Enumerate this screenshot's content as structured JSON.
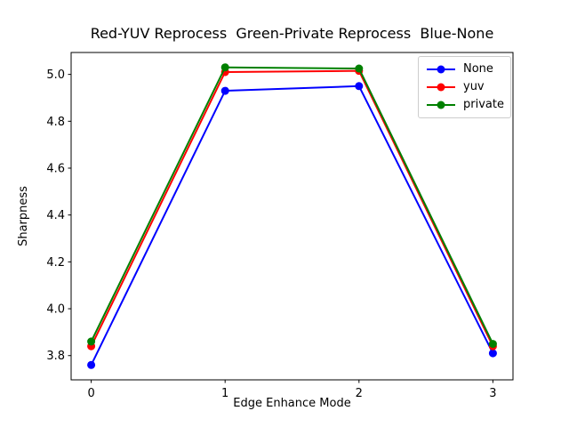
{
  "chart_data": {
    "type": "line",
    "title": "Red-YUV Reprocess  Green-Private Reprocess  Blue-None",
    "xlabel": "Edge Enhance Mode",
    "ylabel": "Sharpness",
    "x": [
      0,
      1,
      2,
      3
    ],
    "series": [
      {
        "name": "None",
        "color": "#0000ff",
        "marker": "circle",
        "values": [
          3.76,
          4.93,
          4.95,
          3.81
        ]
      },
      {
        "name": "yuv",
        "color": "#ff0000",
        "marker": "circle",
        "values": [
          3.84,
          5.01,
          5.015,
          3.84
        ]
      },
      {
        "name": "private",
        "color": "#008000",
        "marker": "circle",
        "values": [
          3.86,
          5.03,
          5.025,
          3.85
        ]
      }
    ],
    "xticks": [
      0,
      1,
      2,
      3
    ],
    "xtick_labels": [
      "0",
      "1",
      "2",
      "3"
    ],
    "yticks": [
      3.8,
      4.0,
      4.2,
      4.4,
      4.6,
      4.8,
      5.0
    ],
    "ytick_labels": [
      "3.8",
      "4.0",
      "4.2",
      "4.4",
      "4.6",
      "4.8",
      "5.0"
    ],
    "xlim": [
      -0.15,
      3.15
    ],
    "ylim": [
      3.6965,
      5.0935
    ],
    "grid": false,
    "legend_position": "upper right"
  },
  "colors": {
    "background": "#ffffff",
    "axis": "#000000",
    "tick_text": "#000000",
    "legend_border": "#cccccc"
  }
}
